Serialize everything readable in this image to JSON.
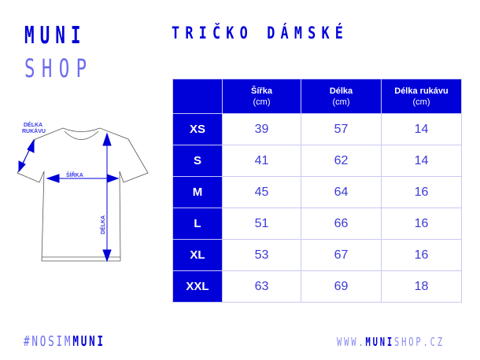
{
  "logo": {
    "line1": "MUNI",
    "line2": "SHOP"
  },
  "title": "TRIČKO DÁMSKÉ",
  "diagram": {
    "sleeve_label_1": "DÉLKA",
    "sleeve_label_2": "RUKÁVU",
    "width_label": "ŠÍŘKA",
    "length_label": "DÉLKA"
  },
  "table": {
    "headers": [
      {
        "name": "Šířka",
        "unit": "(cm)"
      },
      {
        "name": "Délka",
        "unit": "(cm)"
      },
      {
        "name": "Délka rukávu",
        "unit": "(cm)"
      }
    ],
    "rows": [
      {
        "size": "XS",
        "values": [
          "39",
          "57",
          "14"
        ]
      },
      {
        "size": "S",
        "values": [
          "41",
          "62",
          "14"
        ]
      },
      {
        "size": "M",
        "values": [
          "45",
          "64",
          "16"
        ]
      },
      {
        "size": "L",
        "values": [
          "51",
          "66",
          "16"
        ]
      },
      {
        "size": "XL",
        "values": [
          "53",
          "67",
          "16"
        ]
      },
      {
        "size": "XXL",
        "values": [
          "63",
          "69",
          "18"
        ]
      }
    ]
  },
  "footer": {
    "hashtag_prefix": "#NOSIM",
    "hashtag_brand": "MUNI",
    "url_prefix": "WWW.",
    "url_brand": "MUNI",
    "url_suffix": "SHOP.CZ"
  },
  "colors": {
    "brand": "#0000d8",
    "light": "#6b6bf0"
  }
}
